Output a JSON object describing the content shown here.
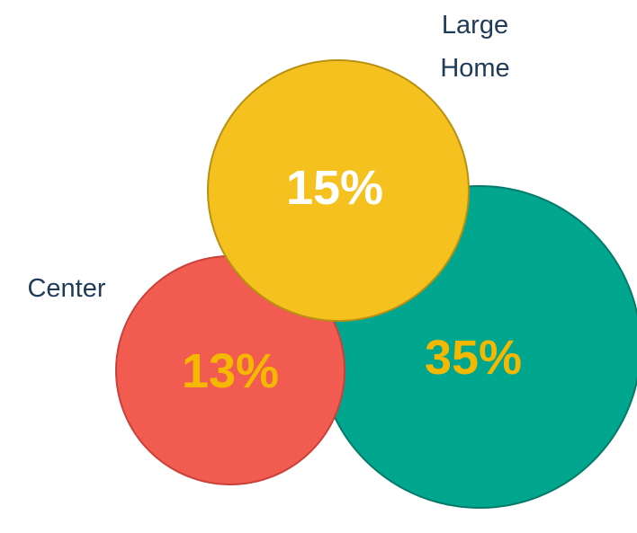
{
  "colors": {
    "label_text": "#1F3B57"
  },
  "bubbles": [
    {
      "id": "large-home",
      "label_lines": [
        "Large",
        "Home"
      ],
      "value": 15,
      "value_label": "15%",
      "fill": "#F5C11E",
      "stroke": "#B89012",
      "value_color": "#FFFFFF"
    },
    {
      "id": "center",
      "label_lines": [
        "Center"
      ],
      "value": 13,
      "value_label": "13%",
      "fill": "#F25C50",
      "stroke": "#C9413A",
      "value_color": "#F5B800"
    },
    {
      "id": "third",
      "label_lines": [],
      "value": 35,
      "value_label": "35%",
      "fill": "#00A68E",
      "stroke": "#067A69",
      "value_color": "#F5B800"
    }
  ]
}
